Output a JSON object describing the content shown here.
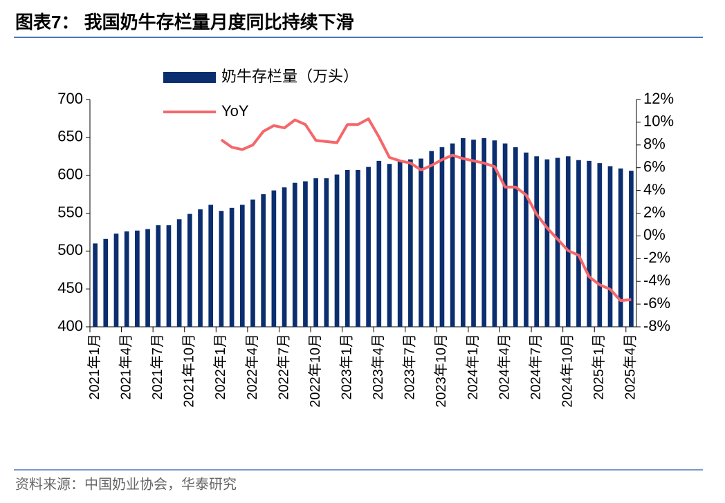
{
  "chart_data": {
    "type": "bar_line",
    "title": "图表7：  我国奶牛存栏量月度同比持续下滑",
    "source": "资料来源：中国奶业协会，华泰研究",
    "categories": [
      "2021年1月",
      null,
      null,
      "2021年4月",
      null,
      null,
      "2021年7月",
      null,
      null,
      "2021年10月",
      null,
      null,
      "2022年1月",
      null,
      null,
      "2022年4月",
      null,
      null,
      "2022年7月",
      null,
      null,
      "2022年10月",
      null,
      null,
      "2023年1月",
      null,
      null,
      "2023年4月",
      null,
      null,
      "2023年7月",
      null,
      null,
      "2023年10月",
      null,
      null,
      "2024年1月",
      null,
      null,
      "2024年4月",
      null,
      null,
      "2024年7月",
      null,
      null,
      "2024年10月",
      null,
      null,
      "2025年1月",
      null,
      null,
      "2025年4月"
    ],
    "series": [
      {
        "name": "奶牛存栏量（万头）",
        "color": "#0b2e6f",
        "type": "bar",
        "values": [
          510,
          516,
          523,
          526,
          527,
          529,
          534,
          534,
          542,
          549,
          555,
          561,
          553,
          557,
          561,
          568,
          575,
          580,
          584,
          590,
          592,
          596,
          596,
          601,
          607,
          607,
          611,
          619,
          615,
          618,
          621,
          622,
          632,
          637,
          642,
          649,
          647,
          649,
          646,
          642,
          637,
          630,
          625,
          621,
          623,
          625,
          620,
          619,
          616,
          612,
          609,
          606
        ]
      },
      {
        "name": "YoY",
        "color": "#f4676b",
        "type": "line",
        "axis": "y2",
        "values": [
          null,
          null,
          null,
          null,
          null,
          null,
          null,
          null,
          null,
          null,
          null,
          null,
          8.45,
          7.8,
          7.6,
          8.0,
          9.2,
          9.7,
          9.5,
          10.2,
          9.8,
          8.4,
          8.3,
          8.2,
          9.8,
          9.8,
          10.3,
          8.7,
          6.9,
          6.6,
          6.4,
          5.8,
          6.2,
          6.7,
          7.1,
          6.8,
          6.6,
          6.4,
          6.1,
          4.3,
          4.3,
          3.6,
          1.9,
          0.7,
          -0.3,
          -1.3,
          -1.7,
          -3.6,
          -4.3,
          -4.7,
          -5.7,
          -5.6
        ]
      }
    ],
    "ylim": [
      400,
      700
    ],
    "yticks": [
      400,
      450,
      500,
      550,
      600,
      650,
      700
    ],
    "y2lim": [
      -8,
      12
    ],
    "y2ticks": [
      {
        "value": -8,
        "label": "-8%"
      },
      {
        "value": -6,
        "label": "-6%"
      },
      {
        "value": -4,
        "label": "-4%"
      },
      {
        "value": -2,
        "label": "-2%"
      },
      {
        "value": 0,
        "label": "0%"
      },
      {
        "value": 2,
        "label": "2%"
      },
      {
        "value": 4,
        "label": "4%"
      },
      {
        "value": 6,
        "label": "6%"
      },
      {
        "value": 8,
        "label": "8%"
      },
      {
        "value": 10,
        "label": "10%"
      },
      {
        "value": 12,
        "label": "12%"
      }
    ],
    "legend": "top-left"
  }
}
